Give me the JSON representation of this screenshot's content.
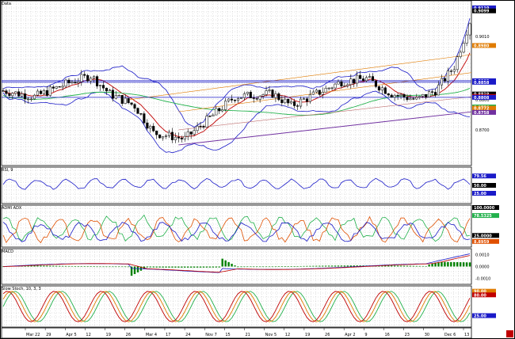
{
  "chart_data": [
    {
      "type": "candlestick",
      "title": "Data",
      "ylim": [
        0.86,
        0.911
      ],
      "y_ticks": [
        "0.9099",
        "0.9010",
        "0.8800",
        "0.8700"
      ],
      "price_tags": [
        {
          "value": "0.9110",
          "color": "#1a1ac8"
        },
        {
          "value": "0.9099",
          "color": "#000000"
        },
        {
          "value": "0.8980",
          "color": "#e07b00"
        },
        {
          "value": "0.8863",
          "color": "#1a1ac8"
        },
        {
          "value": "0.8858",
          "color": "#1a1ac8"
        },
        {
          "value": "0.8819",
          "color": "#000000"
        },
        {
          "value": "0.8811",
          "color": "#c00000"
        },
        {
          "value": "0.8808",
          "color": "#1a1ac8"
        },
        {
          "value": "0.8776",
          "color": "#22b14c"
        },
        {
          "value": "0.8772",
          "color": "#e07b00"
        },
        {
          "value": "0.8758",
          "color": "#7030a0"
        }
      ],
      "x_labels": [
        "Mar 22",
        "29",
        "Apr 5",
        "12",
        "19",
        "26",
        "Mar 4",
        "17",
        "24",
        "Nov 7",
        "15",
        "21",
        "Nov 5",
        "12",
        "19",
        "26",
        "Apr 2",
        "9",
        "16",
        "23",
        "30",
        "Dec 6",
        "13"
      ],
      "series": [
        {
          "name": "bollinger-upper",
          "color": "#1a1ac8"
        },
        {
          "name": "bollinger-lower",
          "color": "#1a1ac8"
        },
        {
          "name": "sma-short",
          "color": "#c00000"
        },
        {
          "name": "sma-long",
          "color": "#22b14c"
        },
        {
          "name": "channel-upper",
          "color": "#e07b00"
        },
        {
          "name": "channel-lower",
          "color": "#7030a0"
        }
      ],
      "horizontal_levels": [
        0.8863,
        0.8858,
        0.8808
      ]
    },
    {
      "type": "line",
      "title": "RSI, 9",
      "ylim": [
        0,
        100
      ],
      "tags": [
        {
          "value": "79.56",
          "color": "#1a1ac8"
        },
        {
          "value": "50.00",
          "color": "#000000"
        },
        {
          "value": "25.00",
          "color": "#1a1ac8"
        }
      ],
      "series": [
        {
          "name": "rsi",
          "color": "#1a1ac8"
        }
      ]
    },
    {
      "type": "line",
      "title": "ADMI ADX",
      "ylim": [
        0,
        100
      ],
      "tags": [
        {
          "value": "100.0000",
          "color": "#000000"
        },
        {
          "value": "78.5325",
          "color": "#22b14c"
        },
        {
          "value": "25.0000",
          "color": "#000000"
        },
        {
          "value": "8.8959",
          "color": "#e05000"
        }
      ],
      "series": [
        {
          "name": "+di",
          "color": "#22b14c"
        },
        {
          "name": "-di",
          "color": "#e05000"
        },
        {
          "name": "adx",
          "color": "#1a1ac8"
        }
      ]
    },
    {
      "type": "bar",
      "title": "MACD",
      "tags": [
        {
          "value": "0.0010",
          "color": "#000000"
        },
        {
          "value": "0.0000",
          "color": "#000000"
        },
        {
          "value": "-0.0010",
          "color": "#000000"
        }
      ],
      "series": [
        {
          "name": "macd",
          "color": "#1a1ac8"
        },
        {
          "name": "signal",
          "color": "#c00000"
        },
        {
          "name": "histogram",
          "color": "#008000"
        }
      ]
    },
    {
      "type": "line",
      "title": "Slow Stoch, 10, 3, 3",
      "ylim": [
        0,
        100
      ],
      "tags": [
        {
          "value": "90.00",
          "color": "#e07b00"
        },
        {
          "value": "80.00",
          "color": "#c00000"
        },
        {
          "value": "25.00",
          "color": "#1a1ac8"
        }
      ],
      "series": [
        {
          "name": "%k",
          "color": "#22b14c"
        },
        {
          "name": "%d",
          "color": "#e07b00"
        },
        {
          "name": "slow",
          "color": "#c00000"
        }
      ]
    }
  ]
}
